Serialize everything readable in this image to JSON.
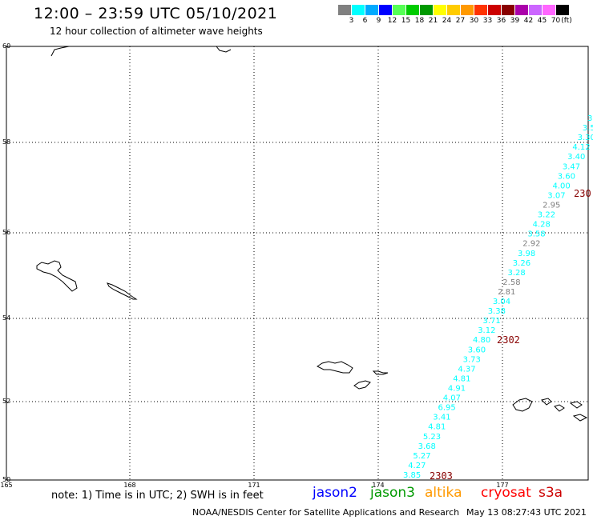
{
  "header": {
    "title": "12:00 – 23:59 UTC 05/10/2021",
    "subtitle": "12 hour collection of altimeter wave heights"
  },
  "scale": {
    "unit": "ft",
    "colors": [
      "#808080",
      "#00ffff",
      "#00aaff",
      "#0000ff",
      "#55ff55",
      "#00cc00",
      "#009900",
      "#ffff00",
      "#ffcc00",
      "#ff9900",
      "#ff3300",
      "#cc0000",
      "#880000",
      "#aa00aa",
      "#cc66ff",
      "#ff66ff",
      "#000000"
    ],
    "labels": [
      "3",
      "6",
      "9",
      "12",
      "15",
      "18",
      "21",
      "24",
      "27",
      "30",
      "33",
      "36",
      "39",
      "42",
      "45",
      "70"
    ]
  },
  "map": {
    "lat_labels": [
      "60",
      "58",
      "56",
      "54",
      "52",
      "50"
    ],
    "lon_labels": [
      "165",
      "168",
      "171",
      "174",
      "177"
    ],
    "time_labels": [
      {
        "text": "2303",
        "color": "#880000"
      },
      {
        "text": "2302",
        "color": "#880000"
      },
      {
        "text": "230",
        "color": "#880000"
      }
    ],
    "track_values": [
      {
        "t": "3.85",
        "c": "#00ffff"
      },
      {
        "t": "4.27",
        "c": "#00ffff"
      },
      {
        "t": "5.27",
        "c": "#00ffff"
      },
      {
        "t": "3.68",
        "c": "#00ffff"
      },
      {
        "t": "5.23",
        "c": "#00ffff"
      },
      {
        "t": "4.81",
        "c": "#00ffff"
      },
      {
        "t": "3.41",
        "c": "#00ffff"
      },
      {
        "t": "6.95",
        "c": "#00ffff"
      },
      {
        "t": "4.07",
        "c": "#00ffff"
      },
      {
        "t": "4.91",
        "c": "#00ffff"
      },
      {
        "t": "4.81",
        "c": "#00ffff"
      },
      {
        "t": "4.37",
        "c": "#00ffff"
      },
      {
        "t": "3.73",
        "c": "#00ffff"
      },
      {
        "t": "3.60",
        "c": "#00ffff"
      },
      {
        "t": "4.80",
        "c": "#00ffff"
      },
      {
        "t": "3.12",
        "c": "#00ffff"
      },
      {
        "t": "3.71",
        "c": "#00ffff"
      },
      {
        "t": "3.38",
        "c": "#00ffff"
      },
      {
        "t": "3.04",
        "c": "#00ffff"
      },
      {
        "t": "2.81",
        "c": "#808080"
      },
      {
        "t": "2.58",
        "c": "#808080"
      },
      {
        "t": "3.28",
        "c": "#00ffff"
      },
      {
        "t": "3.26",
        "c": "#00ffff"
      },
      {
        "t": "3.98",
        "c": "#00ffff"
      },
      {
        "t": "2.92",
        "c": "#808080"
      },
      {
        "t": "3.58",
        "c": "#00ffff"
      },
      {
        "t": "4.28",
        "c": "#00ffff"
      },
      {
        "t": "3.22",
        "c": "#00ffff"
      },
      {
        "t": "2.95",
        "c": "#808080"
      },
      {
        "t": "3.07",
        "c": "#00ffff"
      },
      {
        "t": "4.00",
        "c": "#00ffff"
      },
      {
        "t": "3.60",
        "c": "#00ffff"
      },
      {
        "t": "3.47",
        "c": "#00ffff"
      },
      {
        "t": "3.40",
        "c": "#00ffff"
      },
      {
        "t": "4.12",
        "c": "#00ffff"
      },
      {
        "t": "3.30",
        "c": "#00ffff"
      },
      {
        "t": "3.5",
        "c": "#00ffff"
      },
      {
        "t": "3",
        "c": "#00ffff"
      }
    ]
  },
  "footer": {
    "note": "note:  1) Time is in UTC;  2) SWH is in feet",
    "legend": [
      {
        "name": "jason2",
        "color": "#0000ff"
      },
      {
        "name": "jason3",
        "color": "#009900"
      },
      {
        "name": "altika",
        "color": "#ff9900"
      },
      {
        "name": "cryosat",
        "color": "#ff0000"
      },
      {
        "name": "s3a",
        "color": "#cc0000"
      }
    ],
    "credit": "NOAA/NESDIS Center for Satellite Applications and Research",
    "timestamp": "May 13 08:27:43 UTC 2021"
  }
}
